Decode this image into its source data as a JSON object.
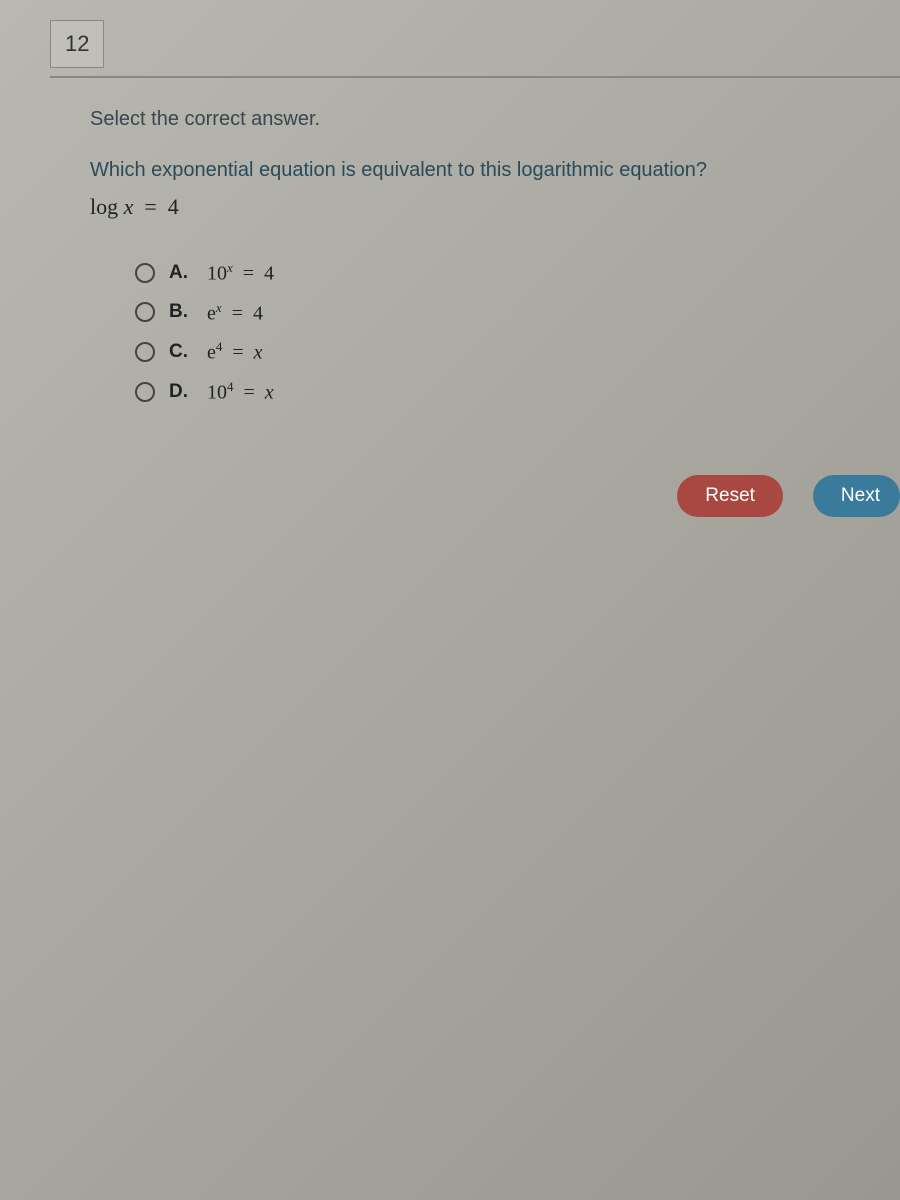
{
  "question": {
    "number": "12",
    "instruction": "Select the correct answer.",
    "prompt": "Which exponential equation is equivalent to this logarithmic equation?",
    "equation_html": "log <span class='var'>x</span> &nbsp;=&nbsp; 4",
    "options": [
      {
        "letter": "A.",
        "math_html": "10<sup><span class='var'>x</span></sup> &nbsp;=&nbsp; 4"
      },
      {
        "letter": "B.",
        "math_html": "e<sup><span class='var'>x</span></sup> &nbsp;=&nbsp; 4"
      },
      {
        "letter": "C.",
        "math_html": "e<sup>4</sup> &nbsp;=&nbsp; <span class='var'>x</span>"
      },
      {
        "letter": "D.",
        "math_html": "10<sup>4</sup> &nbsp;=&nbsp; <span class='var'>x</span>"
      }
    ]
  },
  "buttons": {
    "reset": "Reset",
    "next": "Next"
  },
  "colors": {
    "reset_bg": "#a84840",
    "next_bg": "#3a7a9a",
    "text_primary": "#2a3540",
    "text_question": "#2a4a5a"
  }
}
